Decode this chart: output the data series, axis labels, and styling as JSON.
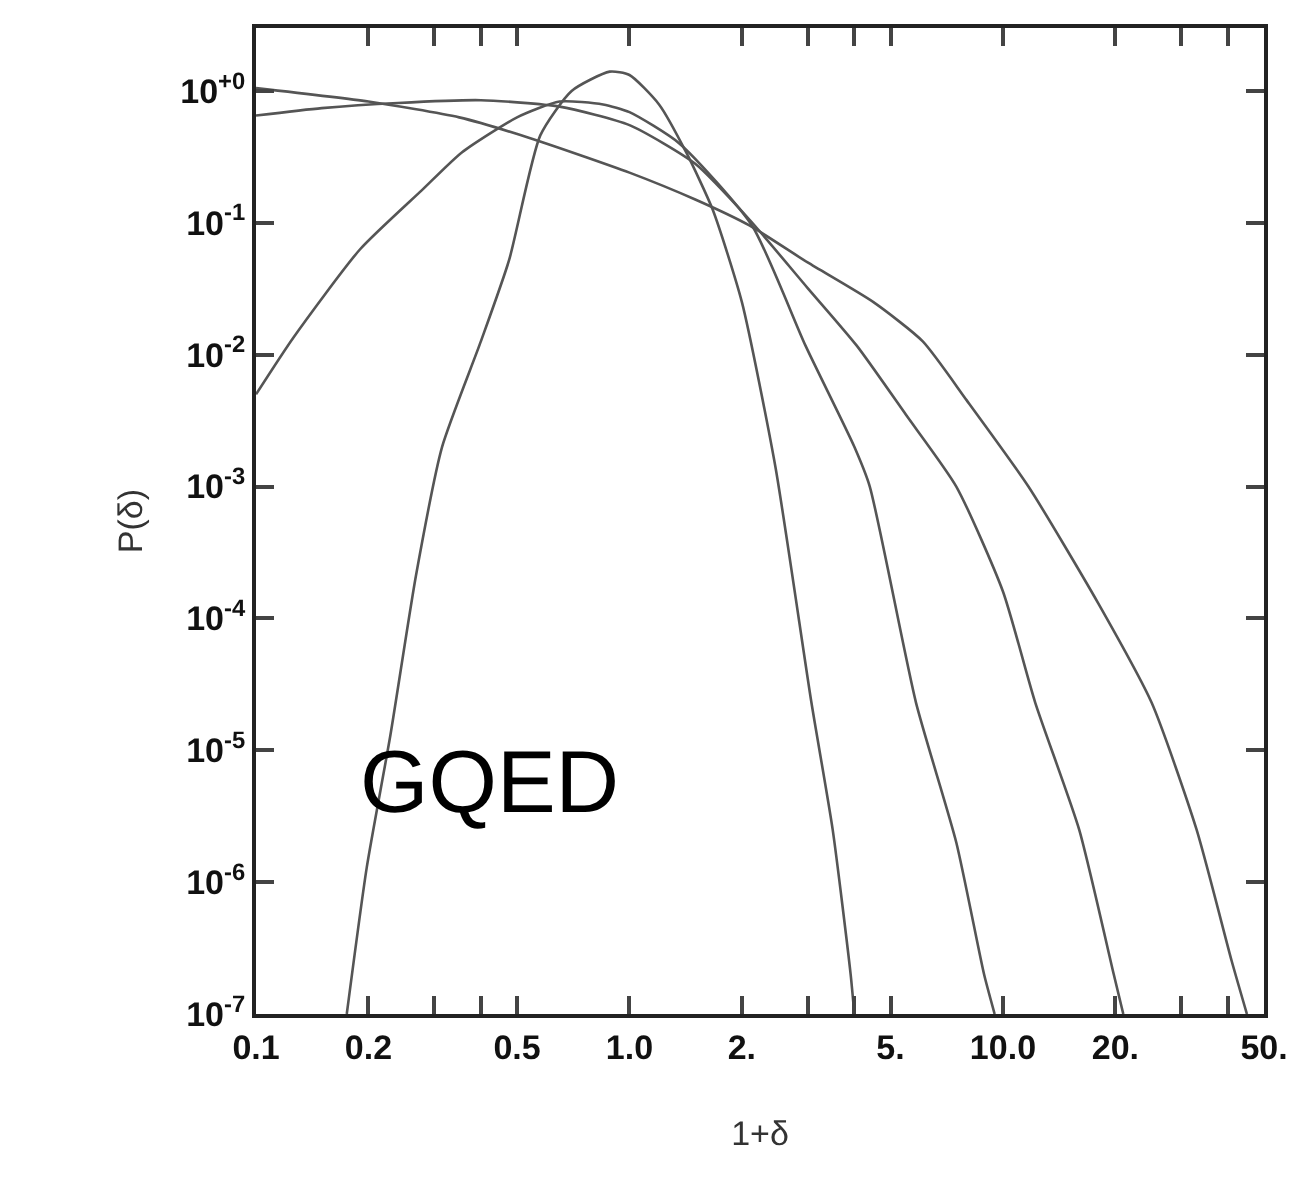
{
  "chart_data": {
    "type": "line",
    "xlabel": "1+δ",
    "ylabel": "P(δ)",
    "log": "xy",
    "marker": "none",
    "line_style": "solid",
    "xlim": [
      0.1,
      50
    ],
    "xticks": [
      {
        "value": 0.1,
        "label": "0.1"
      },
      {
        "value": 0.2,
        "label": "0.2"
      },
      {
        "value": 0.3,
        "label": null
      },
      {
        "value": 0.4,
        "label": null
      },
      {
        "value": 0.5,
        "label": "0.5"
      },
      {
        "value": 1,
        "label": "1.0"
      },
      {
        "value": 2,
        "label": "2."
      },
      {
        "value": 3,
        "label": null
      },
      {
        "value": 4,
        "label": null
      },
      {
        "value": 5,
        "label": "5."
      },
      {
        "value": 10,
        "label": "10.0"
      },
      {
        "value": 20,
        "label": "20."
      },
      {
        "value": 30,
        "label": null
      },
      {
        "value": 40,
        "label": null
      },
      {
        "value": 50,
        "label": "50."
      }
    ],
    "ylim": [
      1e-07,
      3
    ],
    "yticks": [
      {
        "value": 1e-07,
        "label": "10$^{-7}$"
      },
      {
        "value": 1e-06,
        "label": "10$^{-6}$"
      },
      {
        "value": 1e-05,
        "label": "10$^{-5}$"
      },
      {
        "value": 0.0001,
        "label": "10$^{-4}$"
      },
      {
        "value": 0.001,
        "label": "10$^{-3}$"
      },
      {
        "value": 0.01,
        "label": "10$^{-2}$"
      },
      {
        "value": 0.1,
        "label": "10$^{-1}$"
      },
      {
        "value": 1,
        "label": "10$^{+0}$"
      }
    ],
    "annotations": [
      "GQED"
    ],
    "series": [
      {
        "color": "#555555",
        "x": [
          0.175,
          0.198,
          0.229,
          0.268,
          0.315,
          0.4,
          0.476,
          0.577,
          0.7,
          0.885,
          1.0,
          1.2,
          1.42,
          1.67,
          2.0,
          2.46,
          3.07,
          3.5,
          3.91,
          4.0
        ],
        "values": [
          1e-07,
          1.3e-06,
          1.3e-05,
          0.00021,
          0.002,
          0.0126,
          0.052,
          0.46,
          1.0,
          1.4,
          1.32,
          0.79,
          0.34,
          0.126,
          0.025,
          0.0014,
          2.3e-05,
          2.5e-06,
          2e-07,
          1e-07
        ]
      },
      {
        "color": "#555555",
        "x": [
          0.1,
          0.126,
          0.19,
          0.28,
          0.355,
          0.5,
          0.65,
          0.85,
          1.0,
          1.36,
          2.13,
          2.96,
          4.0,
          4.4,
          5.85,
          7.5,
          8.9,
          9.5
        ],
        "values": [
          0.005,
          0.0135,
          0.063,
          0.18,
          0.34,
          0.63,
          0.83,
          0.79,
          0.69,
          0.4,
          0.095,
          0.0117,
          0.002,
          0.001,
          2.3e-05,
          2e-06,
          2e-07,
          1e-07
        ]
      },
      {
        "color": "#555555",
        "x": [
          0.1,
          0.15,
          0.24,
          0.4,
          0.65,
          1.0,
          1.5,
          2.1,
          3.0,
          4.06,
          5.5,
          7.5,
          10,
          12.2,
          16,
          19.8,
          21
        ],
        "values": [
          0.65,
          0.74,
          0.81,
          0.85,
          0.76,
          0.55,
          0.28,
          0.105,
          0.032,
          0.0117,
          0.0035,
          0.001,
          0.00016,
          2.3e-05,
          2.5e-06,
          2e-07,
          1e-07
        ]
      },
      {
        "color": "#555555",
        "x": [
          0.1,
          0.2,
          0.35,
          0.54,
          1.0,
          1.5,
          2.1,
          3,
          4.5,
          6.1,
          8,
          11.7,
          18,
          25,
          33,
          41,
          45
        ],
        "values": [
          1.05,
          0.83,
          0.63,
          0.44,
          0.24,
          0.15,
          0.095,
          0.05,
          0.025,
          0.0126,
          0.0045,
          0.001,
          0.00013,
          2.3e-05,
          2.5e-06,
          2.5e-07,
          1e-07
        ]
      }
    ]
  }
}
